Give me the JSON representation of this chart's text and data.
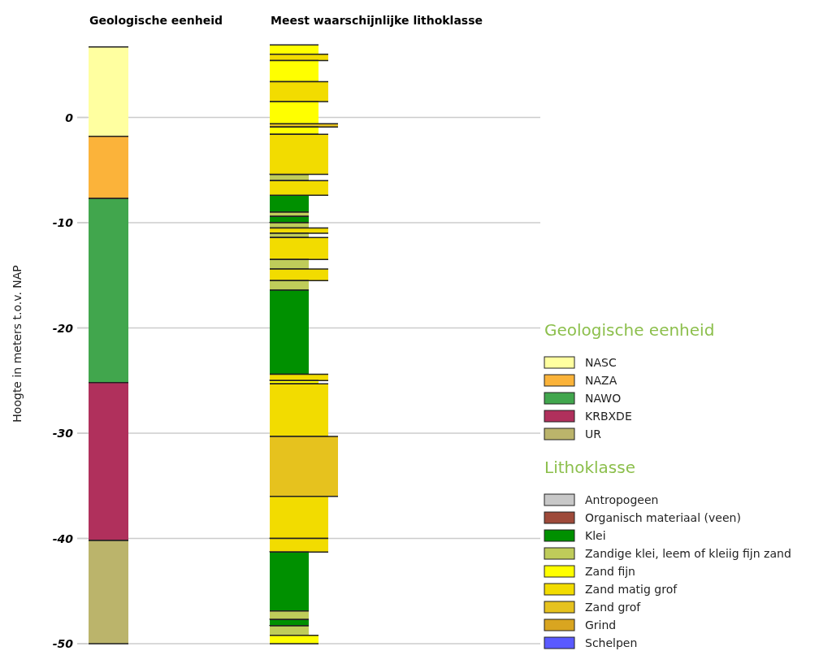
{
  "chart_data": {
    "type": "bar",
    "categories": [
      "Geologische eenheid",
      "Meest waarschijnlijke lithoklasse"
    ],
    "ylabel": "Hoogte in meters t.o.v. NAP",
    "ylim": [
      -50,
      7
    ],
    "yticks": [
      0,
      -10,
      -20,
      -30,
      -40,
      -50
    ],
    "grid": "y",
    "legend": "right",
    "legend_title": [
      "Geologische eenheid",
      "Lithoklasse"
    ],
    "series": [
      {
        "name": "NASC",
        "color": "#ffffa0",
        "values": [
          8.5,
          null
        ],
        "base": [
          -1.8,
          null
        ]
      },
      {
        "name": "NAZA",
        "color": "#fbb33a",
        "values": [
          5.9,
          null
        ],
        "base": [
          -7.7,
          null
        ]
      },
      {
        "name": "NAWO",
        "color": "#41a64d",
        "values": [
          17.5,
          null
        ],
        "base": [
          -25.2,
          null
        ]
      },
      {
        "name": "KRBXDE",
        "color": "#b0305c",
        "values": [
          15,
          null
        ],
        "base": [
          -40.2,
          null
        ]
      },
      {
        "name": "UR",
        "color": "#bbb46b",
        "values": [
          9.8,
          null
        ],
        "base": [
          -50,
          null
        ]
      },
      {
        "name": "Antropogeen",
        "color": "#c8c8c8",
        "values": [
          null,
          null
        ]
      },
      {
        "name": "Organisch materiaal (veen)",
        "color": "#9e4a3a",
        "values": [
          null,
          null
        ]
      },
      {
        "name": "Klei",
        "color": "#009000",
        "values": [
          null,
          1.6
        ],
        "base": [
          null,
          -9.0
        ]
      },
      {
        "name": "Zandige klei, leem of kleiig fijn zand",
        "color": "#bfcc5a",
        "values": [
          null,
          0.6
        ],
        "base": [
          null,
          -6.0
        ]
      },
      {
        "name": "Zand fijn",
        "color": "#ffff00",
        "values": [
          null,
          0.9
        ],
        "base": [
          null,
          6.0
        ]
      },
      {
        "name": "Zand matig grof",
        "color": "#f2dc00",
        "values": [
          null,
          0.6
        ],
        "base": [
          null,
          5.4
        ]
      },
      {
        "name": "Zand grof",
        "color": "#e6c21e",
        "values": [
          null,
          0.3
        ],
        "base": [
          null,
          -0.9
        ]
      },
      {
        "name": "Grind",
        "color": "#d9a520",
        "values": [
          null,
          null
        ]
      },
      {
        "name": "Schelpen",
        "color": "#5a5aff",
        "values": [
          null,
          null
        ]
      },
      {
        "color": "#ffff00",
        "values": [
          null,
          2.0
        ],
        "base": [
          null,
          3.4
        ]
      },
      {
        "color": "#f2dc00",
        "values": [
          null,
          1.9
        ],
        "base": [
          null,
          1.5
        ]
      },
      {
        "color": "#ffff00",
        "values": [
          null,
          2.1
        ],
        "base": [
          null,
          -0.6
        ]
      },
      {
        "color": "#ffff00",
        "values": [
          null,
          0.7
        ],
        "base": [
          null,
          -1.6
        ]
      },
      {
        "color": "#f2dc00",
        "values": [
          null,
          3.8
        ],
        "base": [
          null,
          -5.4
        ]
      },
      {
        "color": "#f2dc00",
        "values": [
          null,
          1.4
        ],
        "base": [
          null,
          -7.4
        ]
      },
      {
        "color": "#bfcc5a",
        "values": [
          null,
          0.4
        ],
        "base": [
          null,
          -9.4
        ]
      },
      {
        "color": "#009000",
        "values": [
          null,
          0.6
        ],
        "base": [
          null,
          -10.0
        ]
      },
      {
        "color": "#bfcc5a",
        "values": [
          null,
          0.5
        ],
        "base": [
          null,
          -10.5
        ]
      },
      {
        "color": "#f2dc00",
        "values": [
          null,
          0.5
        ],
        "base": [
          null,
          -11.0
        ]
      },
      {
        "color": "#bfcc5a",
        "values": [
          null,
          0.4
        ],
        "base": [
          null,
          -11.4
        ]
      },
      {
        "color": "#f2dc00",
        "values": [
          null,
          2.1
        ],
        "base": [
          null,
          -13.5
        ]
      },
      {
        "color": "#bfcc5a",
        "values": [
          null,
          0.9
        ],
        "base": [
          null,
          -14.4
        ]
      },
      {
        "color": "#f2dc00",
        "values": [
          null,
          1.1
        ],
        "base": [
          null,
          -15.5
        ]
      },
      {
        "color": "#bfcc5a",
        "values": [
          null,
          0.9
        ],
        "base": [
          null,
          -16.4
        ]
      },
      {
        "color": "#009000",
        "values": [
          null,
          8.0
        ],
        "base": [
          null,
          -24.4
        ]
      },
      {
        "color": "#f2dc00",
        "values": [
          null,
          0.6
        ],
        "base": [
          null,
          -25.0
        ]
      },
      {
        "color": "#ffff00",
        "values": [
          null,
          0.3
        ],
        "base": [
          null,
          -25.3
        ]
      },
      {
        "color": "#f2dc00",
        "values": [
          null,
          5.0
        ],
        "base": [
          null,
          -30.3
        ]
      },
      {
        "color": "#e6c21e",
        "values": [
          null,
          5.7
        ],
        "base": [
          null,
          -36.0
        ]
      },
      {
        "color": "#f2dc00",
        "values": [
          null,
          4.0
        ],
        "base": [
          null,
          -40.0
        ]
      },
      {
        "color": "#f2dc00",
        "values": [
          null,
          1.3
        ],
        "base": [
          null,
          -41.3
        ]
      },
      {
        "color": "#009000",
        "values": [
          null,
          5.6
        ],
        "base": [
          null,
          -46.9
        ]
      },
      {
        "color": "#bfcc5a",
        "values": [
          null,
          0.8
        ],
        "base": [
          null,
          -47.7
        ]
      },
      {
        "color": "#009000",
        "values": [
          null,
          0.6
        ],
        "base": [
          null,
          -48.3
        ]
      },
      {
        "color": "#bfcc5a",
        "values": [
          null,
          0.9
        ],
        "base": [
          null,
          -49.2
        ]
      },
      {
        "color": "#ffff00",
        "values": [
          null,
          0.8
        ],
        "base": [
          null,
          -50.0
        ]
      }
    ]
  }
}
